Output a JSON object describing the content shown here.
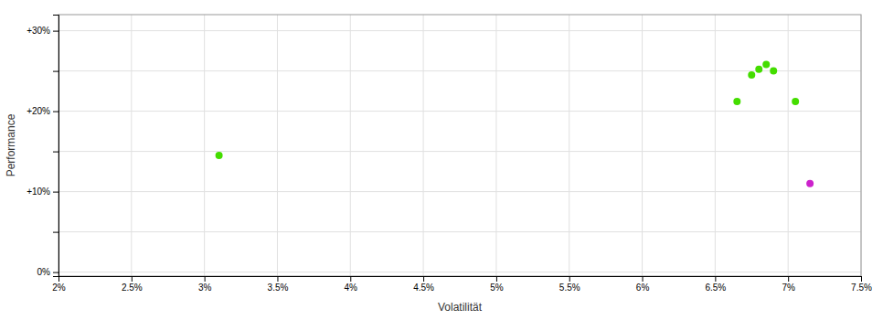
{
  "chart_data": {
    "type": "scatter",
    "xlabel": "Volatilität",
    "ylabel": "Performance",
    "xlim": [
      0.02,
      0.075
    ],
    "ylim": [
      -0.005,
      0.32
    ],
    "xticks": [
      {
        "value": 0.02,
        "label": "2%"
      },
      {
        "value": 0.025,
        "label": "2.5%"
      },
      {
        "value": 0.03,
        "label": "3%"
      },
      {
        "value": 0.035,
        "label": "3.5%"
      },
      {
        "value": 0.04,
        "label": "4%"
      },
      {
        "value": 0.045,
        "label": "4.5%"
      },
      {
        "value": 0.05,
        "label": "5%"
      },
      {
        "value": 0.055,
        "label": "5.5%"
      },
      {
        "value": 0.06,
        "label": "6%"
      },
      {
        "value": 0.065,
        "label": "6.5%"
      },
      {
        "value": 0.07,
        "label": "7%"
      },
      {
        "value": 0.075,
        "label": "7.5%"
      }
    ],
    "yticks": [
      {
        "value": 0.0,
        "label": "0%"
      },
      {
        "value": 0.05,
        "label": null
      },
      {
        "value": 0.1,
        "label": "+10%"
      },
      {
        "value": 0.15,
        "label": null
      },
      {
        "value": 0.2,
        "label": "+20%"
      },
      {
        "value": 0.25,
        "label": null
      },
      {
        "value": 0.3,
        "label": "+30%"
      }
    ],
    "grid": true,
    "series": [
      {
        "color": "#44dd00",
        "x": [
          0.031,
          0.0665,
          0.0675,
          0.068,
          0.0685,
          0.069,
          0.0705
        ],
        "values": [
          0.145,
          0.212,
          0.245,
          0.252,
          0.258,
          0.25,
          0.212
        ]
      },
      {
        "color": "#cc22cc",
        "x": [
          0.0715
        ],
        "values": [
          0.11
        ]
      }
    ]
  }
}
